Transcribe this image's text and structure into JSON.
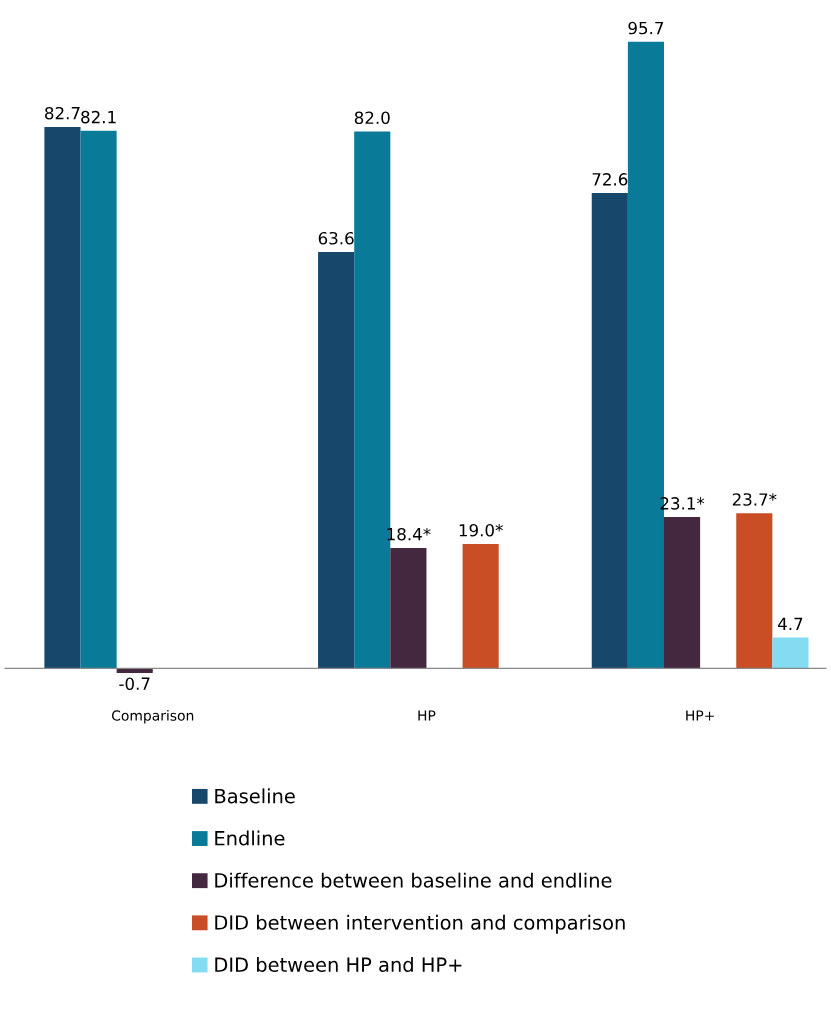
{
  "chart_data": {
    "type": "bar",
    "categories": [
      "Comparison",
      "HP",
      "HP+"
    ],
    "series": [
      {
        "name": "Baseline",
        "color": "#17476b",
        "values": [
          82.7,
          63.6,
          72.6
        ],
        "value_labels": [
          "82.7",
          "63.6",
          "72.6"
        ]
      },
      {
        "name": "Endline",
        "color": "#0a7a99",
        "values": [
          82.1,
          82.0,
          95.7
        ],
        "value_labels": [
          "82.1",
          "82.0",
          "95.7"
        ]
      },
      {
        "name": "Difference between baseline and endline",
        "color": "#44283f",
        "values": [
          -0.7,
          18.4,
          23.1
        ],
        "value_labels": [
          "-0.7",
          "18.4*",
          "23.1*"
        ]
      },
      {
        "name": "DID between intervention and comparison",
        "color": "#c94e26",
        "values": [
          null,
          19.0,
          23.7
        ],
        "value_labels": [
          null,
          "19.0*",
          "23.7*"
        ]
      },
      {
        "name": "DID between HP and HP+",
        "color": "#83dcf2",
        "values": [
          null,
          null,
          4.7
        ],
        "value_labels": [
          null,
          null,
          "4.7"
        ]
      }
    ],
    "tick_labels": "x",
    "grid": false,
    "legend": "bottom"
  }
}
